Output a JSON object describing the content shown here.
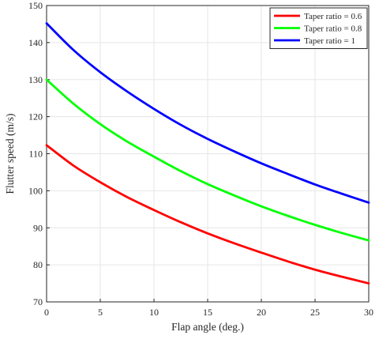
{
  "chart_data": {
    "type": "line",
    "title": "",
    "xlabel": "Flap angle (deg.)",
    "ylabel": "Flutter speed (m/s)",
    "xlim": [
      0,
      30
    ],
    "ylim": [
      70,
      150
    ],
    "xticks": [
      0,
      5,
      10,
      15,
      20,
      25,
      30
    ],
    "yticks": [
      70,
      80,
      90,
      100,
      110,
      120,
      130,
      140,
      150
    ],
    "grid": true,
    "legend_position": "top-right",
    "x": [
      0,
      2.5,
      5,
      7.5,
      10,
      12.5,
      15,
      17.5,
      20,
      22.5,
      25,
      27.5,
      30
    ],
    "series": [
      {
        "name": "Taper ratio = 0.6",
        "color": "#ff0000",
        "values": [
          112.3,
          106.8,
          102.3,
          98.3,
          94.8,
          91.5,
          88.5,
          85.8,
          83.3,
          80.9,
          78.7,
          76.8,
          75.0
        ]
      },
      {
        "name": "Taper ratio = 0.8",
        "color": "#00ff00",
        "values": [
          130.0,
          123.5,
          118.0,
          113.3,
          109.2,
          105.3,
          101.8,
          98.7,
          95.8,
          93.2,
          90.8,
          88.6,
          86.6
        ]
      },
      {
        "name": "Taper ratio = 1",
        "color": "#0000ff",
        "values": [
          145.2,
          138.0,
          132.0,
          126.8,
          122.1,
          117.8,
          114.0,
          110.6,
          107.4,
          104.5,
          101.7,
          99.2,
          96.8
        ]
      }
    ]
  }
}
